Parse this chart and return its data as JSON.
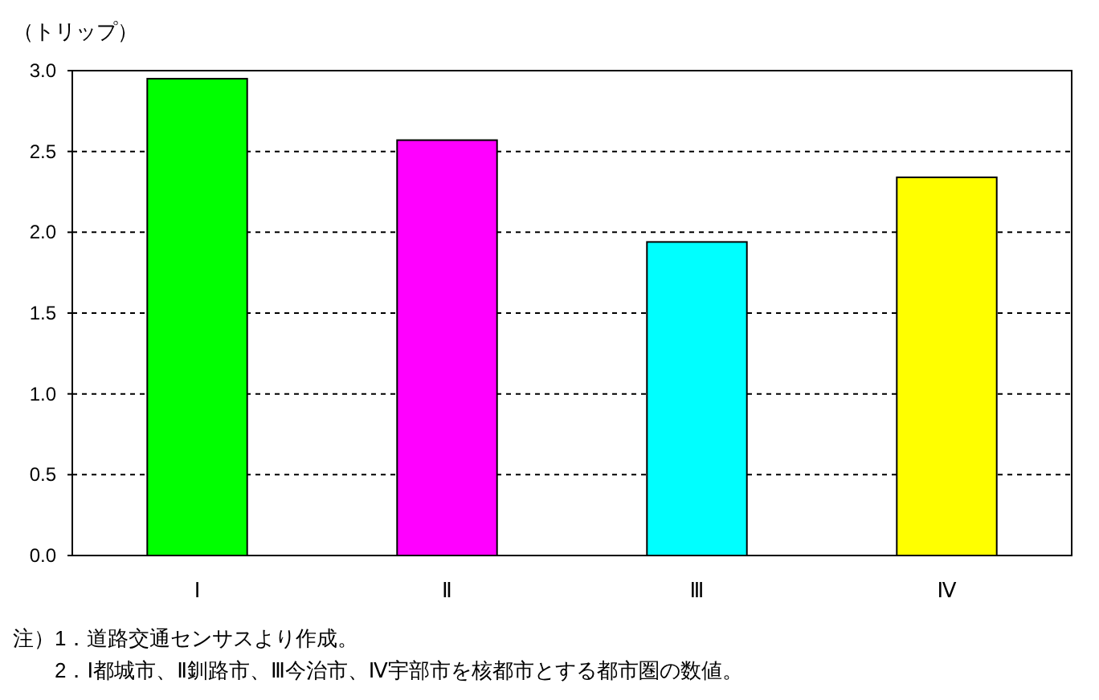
{
  "chart_data": {
    "type": "bar",
    "ylabel": "（トリップ）",
    "categories": [
      "Ⅰ",
      "Ⅱ",
      "Ⅲ",
      "Ⅳ"
    ],
    "values": [
      2.95,
      2.57,
      1.94,
      2.34
    ],
    "colors": [
      "#00ff00",
      "#ff00ff",
      "#00ffff",
      "#ffff00"
    ],
    "ylim": [
      0,
      3
    ],
    "yticks": [
      {
        "value": 0,
        "label": "0.0"
      },
      {
        "value": 0.5,
        "label": "0.5"
      },
      {
        "value": 1,
        "label": "1.0"
      },
      {
        "value": 1.5,
        "label": "1.5"
      },
      {
        "value": 2,
        "label": "2.0"
      },
      {
        "value": 2.5,
        "label": "2.5"
      },
      {
        "value": 3,
        "label": "3.0"
      }
    ],
    "grid": "y",
    "annotations": [
      "注）1．道路交通センサスより作成。",
      "　　2．Ⅰ都城市、Ⅱ釧路市、Ⅲ今治市、Ⅳ宇部市を核都市とする都市圏の数値。"
    ]
  }
}
